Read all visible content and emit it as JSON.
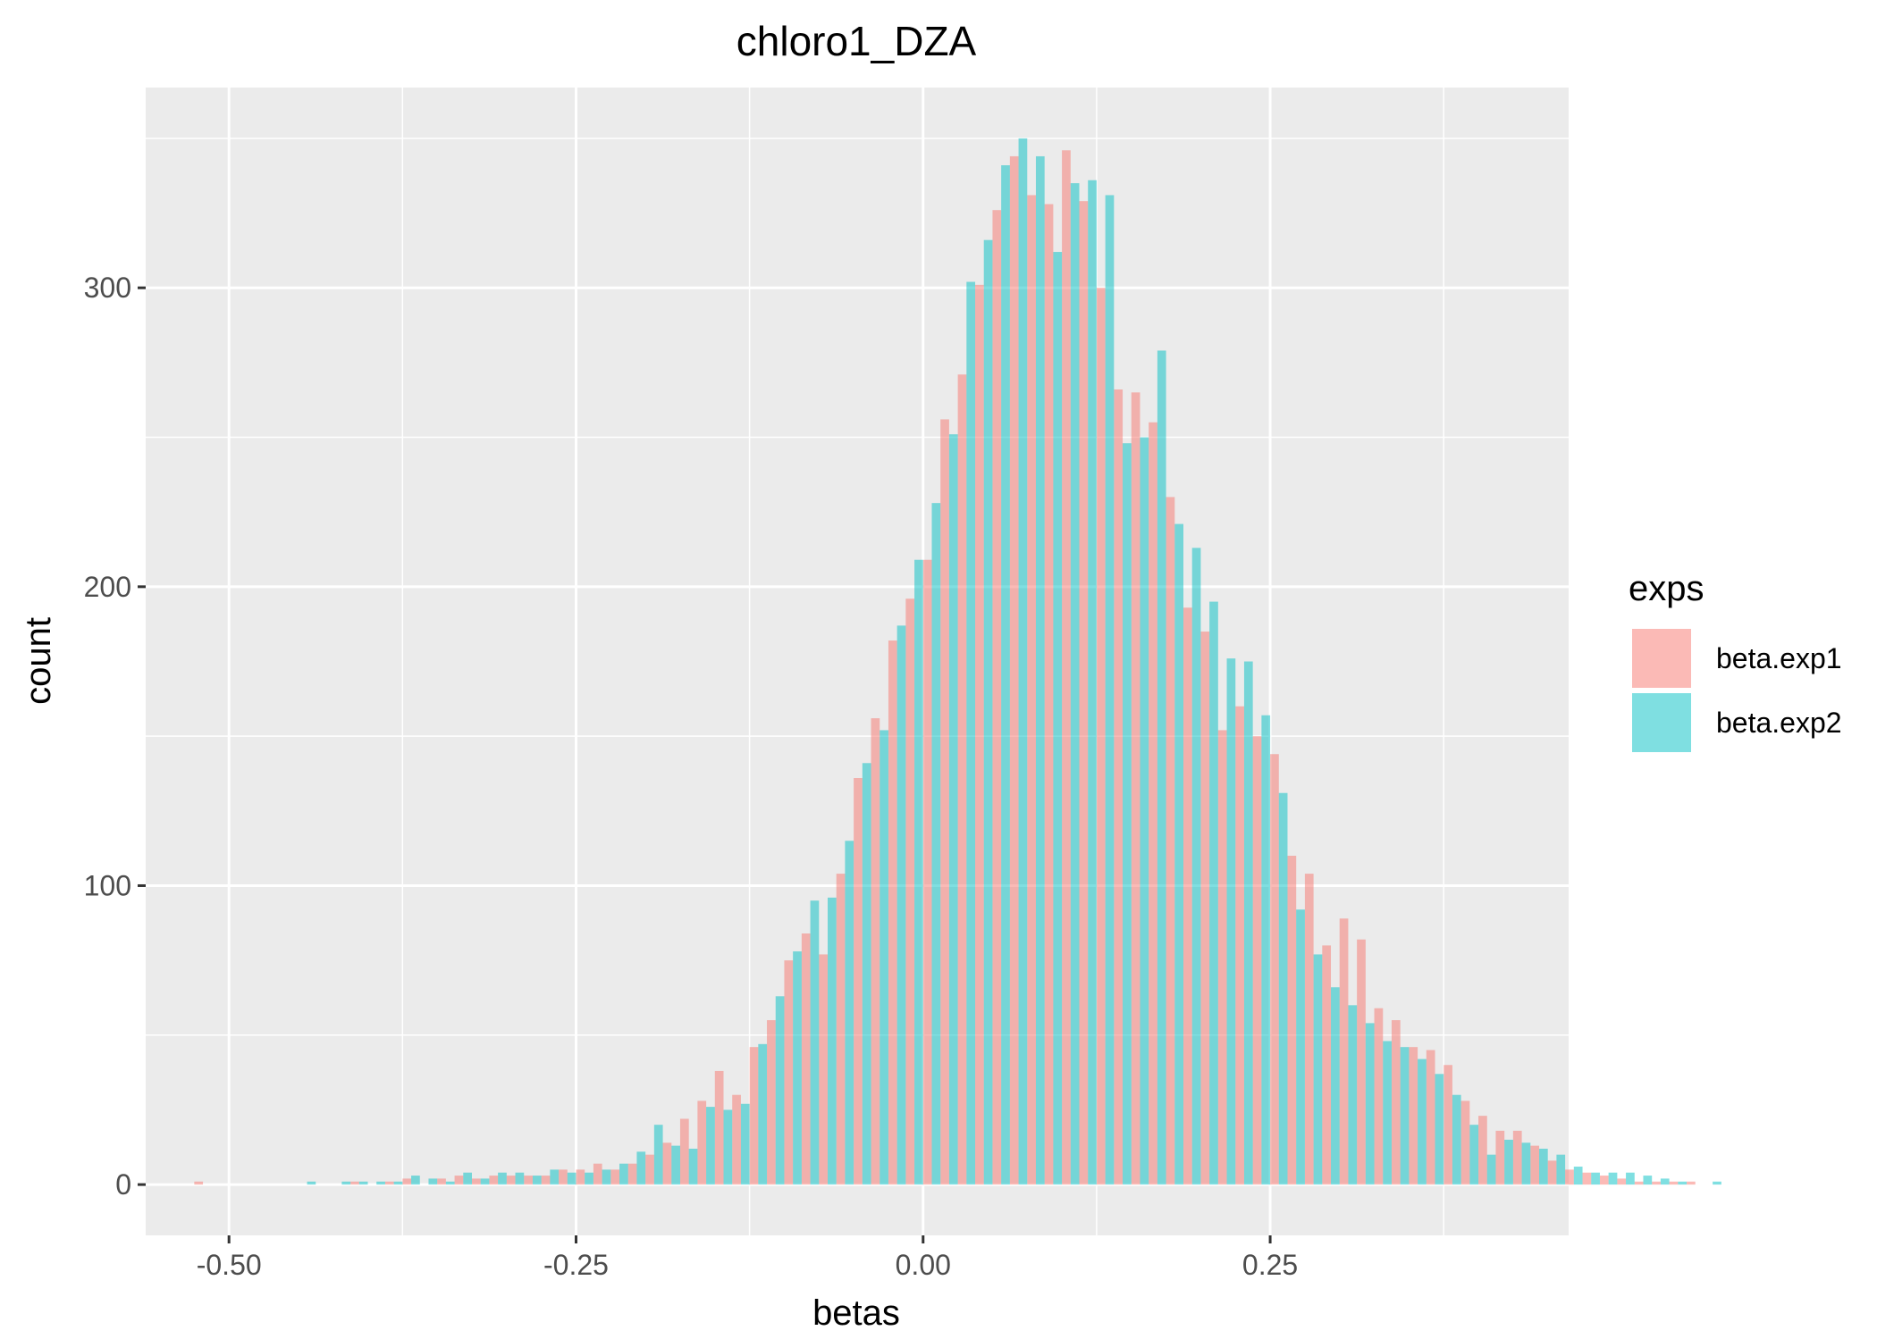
{
  "colors": {
    "panel_bg": "#ebebeb",
    "grid": "#ffffff",
    "tick_text": "#4d4d4d",
    "series": [
      "#f8766d",
      "#00bfc4"
    ],
    "fill_opacity": 0.5
  },
  "chart_data": {
    "type": "bar",
    "title": "chloro1_DZA",
    "xlabel": "betas",
    "ylabel": "count",
    "xlim": [
      -0.56,
      0.465
    ],
    "ylim": [
      -17,
      367
    ],
    "x_ticks": [
      -0.5,
      -0.25,
      0,
      0.25
    ],
    "x_tick_labels": [
      "-0.50",
      "-0.25",
      "0.00",
      "0.25"
    ],
    "y_ticks": [
      0,
      100,
      200,
      300
    ],
    "y_tick_labels": [
      "0",
      "100",
      "200",
      "300"
    ],
    "grid": true,
    "legend": {
      "title": "exps",
      "position": "right"
    },
    "bin_width": 0.0125,
    "bin_start": -0.525,
    "series": [
      {
        "name": "beta.exp1",
        "values": [
          1,
          0,
          0,
          0,
          0,
          0,
          0,
          0,
          0,
          1,
          0,
          1,
          2,
          0,
          2,
          3,
          2,
          3,
          3,
          3,
          3,
          5,
          5,
          7,
          5,
          7,
          10,
          14,
          22,
          28,
          38,
          30,
          46,
          55,
          75,
          84,
          77,
          104,
          136,
          156,
          182,
          196,
          209,
          256,
          271,
          301,
          326,
          344,
          331,
          328,
          346,
          329,
          300,
          266,
          265,
          255,
          230,
          193,
          185,
          152,
          160,
          150,
          144,
          110,
          104,
          80,
          89,
          82,
          59,
          55,
          46,
          45,
          40,
          28,
          23,
          18,
          18,
          13,
          8,
          5,
          4,
          3,
          2,
          1,
          1,
          1,
          1,
          0
        ]
      },
      {
        "name": "beta.exp2",
        "values": [
          0,
          0,
          0,
          0,
          0,
          0,
          1,
          0,
          1,
          1,
          1,
          1,
          3,
          2,
          1,
          4,
          2,
          4,
          4,
          3,
          5,
          4,
          4,
          5,
          7,
          11,
          20,
          13,
          12,
          26,
          25,
          27,
          47,
          63,
          78,
          95,
          96,
          115,
          141,
          152,
          187,
          209,
          228,
          251,
          302,
          316,
          341,
          350,
          344,
          312,
          335,
          336,
          331,
          248,
          250,
          279,
          221,
          213,
          195,
          176,
          175,
          157,
          131,
          92,
          77,
          66,
          60,
          54,
          48,
          46,
          42,
          37,
          30,
          20,
          10,
          15,
          14,
          12,
          10,
          6,
          4,
          4,
          4,
          3,
          2,
          1,
          0,
          1
        ]
      }
    ]
  }
}
